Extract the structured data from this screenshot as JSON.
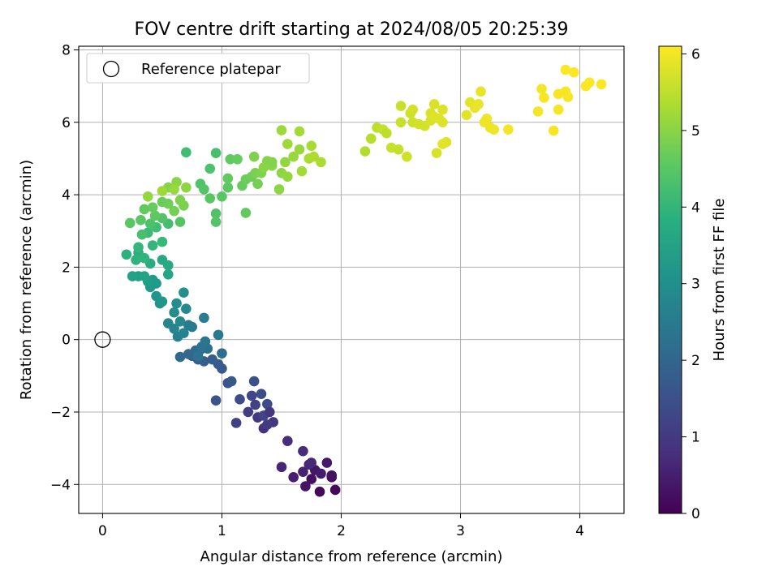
{
  "chart_data": {
    "type": "scatter",
    "title": "FOV centre drift starting at 2024/08/05 20:25:39",
    "xlabel": "Angular distance from reference (arcmin)",
    "ylabel": "Rotation from reference (arcmin)",
    "xlim": [
      -0.2,
      4.37
    ],
    "ylim": [
      -4.8,
      8.1
    ],
    "xticks": [
      0,
      1,
      2,
      3,
      4
    ],
    "yticks": [
      -4,
      -2,
      0,
      2,
      4,
      6,
      8
    ],
    "yticklabels": [
      "−4",
      "−2",
      "0",
      "2",
      "4",
      "6",
      "8"
    ],
    "grid": true,
    "legend": {
      "placement": "top-left",
      "entries": [
        "Reference platepar"
      ]
    },
    "reference_point": {
      "x": 0,
      "y": 0
    },
    "colorbar": {
      "label": "Hours from first FF file",
      "range": [
        0,
        6.1
      ],
      "ticks": [
        0,
        1,
        2,
        3,
        4,
        5,
        6
      ],
      "colormap": "viridis"
    },
    "series": [
      {
        "points": [
          [
            1.82,
            -4.2,
            0.1
          ],
          [
            1.95,
            -4.15,
            0.15
          ],
          [
            1.92,
            -3.8,
            0.2
          ],
          [
            1.75,
            -3.85,
            0.25
          ],
          [
            1.7,
            -4.05,
            0.3
          ],
          [
            1.78,
            -3.6,
            0.35
          ],
          [
            1.88,
            -3.4,
            0.4
          ],
          [
            1.83,
            -3.7,
            0.45
          ],
          [
            1.6,
            -3.8,
            0.5
          ],
          [
            1.68,
            -3.65,
            0.55
          ],
          [
            1.73,
            -3.45,
            0.6
          ],
          [
            1.5,
            -3.52,
            0.65
          ],
          [
            1.75,
            -3.4,
            0.7
          ],
          [
            1.68,
            -3.08,
            0.75
          ],
          [
            1.55,
            -2.8,
            0.8
          ],
          [
            1.92,
            -3.75,
            0.3
          ],
          [
            1.35,
            -2.45,
            0.9
          ],
          [
            1.43,
            -2.28,
            0.95
          ],
          [
            1.3,
            -2.15,
            1.0
          ],
          [
            1.38,
            -2.35,
            1.05
          ],
          [
            1.22,
            -2.0,
            1.1
          ],
          [
            1.12,
            -2.3,
            1.15
          ],
          [
            1.28,
            -1.8,
            1.2
          ],
          [
            1.35,
            -2.1,
            1.25
          ],
          [
            1.25,
            -1.55,
            1.3
          ],
          [
            1.15,
            -1.65,
            1.35
          ],
          [
            1.38,
            -1.78,
            1.4
          ],
          [
            1.33,
            -1.5,
            1.45
          ],
          [
            1.27,
            -1.15,
            1.5
          ],
          [
            1.4,
            -2.0,
            1.0
          ],
          [
            0.95,
            -1.68,
            1.55
          ],
          [
            1.05,
            -1.2,
            1.6
          ],
          [
            1.08,
            -1.15,
            1.65
          ],
          [
            1.0,
            -0.8,
            1.7
          ],
          [
            0.97,
            -0.68,
            1.75
          ],
          [
            0.92,
            -0.55,
            1.8
          ],
          [
            0.85,
            -0.6,
            1.85
          ],
          [
            0.8,
            -0.55,
            1.9
          ],
          [
            0.75,
            -0.45,
            1.95
          ],
          [
            0.72,
            -0.4,
            2.0
          ],
          [
            0.65,
            -0.48,
            2.05
          ],
          [
            0.78,
            -0.3,
            2.1
          ],
          [
            0.82,
            -0.28,
            2.15
          ],
          [
            1.0,
            -0.38,
            2.2
          ],
          [
            0.88,
            -0.25,
            2.25
          ],
          [
            0.8,
            -0.45,
            2.3
          ],
          [
            0.83,
            -0.2,
            2.35
          ],
          [
            0.86,
            -0.05,
            2.4
          ],
          [
            0.97,
            0.13,
            2.45
          ],
          [
            0.75,
            0.35,
            2.5
          ],
          [
            0.72,
            0.4,
            2.55
          ],
          [
            0.85,
            0.6,
            2.6
          ],
          [
            0.63,
            0.08,
            2.65
          ],
          [
            0.68,
            0.18,
            2.7
          ],
          [
            0.6,
            0.3,
            2.75
          ],
          [
            0.55,
            0.45,
            2.8
          ],
          [
            0.65,
            0.5,
            2.85
          ],
          [
            0.7,
            0.85,
            2.9
          ],
          [
            0.6,
            0.75,
            2.95
          ],
          [
            0.62,
            1.0,
            3.0
          ],
          [
            0.68,
            1.3,
            3.05
          ],
          [
            0.48,
            1.0,
            3.1
          ],
          [
            0.45,
            1.2,
            3.15
          ],
          [
            0.5,
            1.05,
            3.2
          ],
          [
            0.4,
            1.45,
            3.25
          ],
          [
            0.45,
            1.55,
            3.3
          ],
          [
            0.42,
            1.65,
            3.35
          ],
          [
            0.38,
            1.6,
            3.4
          ],
          [
            0.3,
            1.75,
            3.45
          ],
          [
            0.25,
            1.75,
            3.5
          ],
          [
            0.35,
            1.75,
            3.55
          ],
          [
            0.55,
            1.8,
            3.6
          ],
          [
            0.5,
            2.2,
            3.65
          ],
          [
            0.55,
            2.05,
            3.7
          ],
          [
            0.4,
            2.1,
            3.75
          ],
          [
            0.3,
            2.4,
            3.8
          ],
          [
            0.2,
            2.35,
            3.85
          ],
          [
            0.28,
            2.2,
            3.9
          ],
          [
            0.35,
            2.25,
            3.95
          ],
          [
            0.3,
            2.55,
            4.0
          ],
          [
            0.42,
            2.6,
            4.05
          ],
          [
            0.5,
            2.7,
            4.1
          ],
          [
            0.38,
            2.95,
            4.15
          ],
          [
            0.45,
            3.1,
            4.2
          ],
          [
            0.55,
            3.2,
            4.25
          ],
          [
            0.33,
            2.9,
            4.3
          ],
          [
            0.4,
            3.2,
            4.35
          ],
          [
            0.5,
            3.35,
            4.4
          ],
          [
            0.65,
            3.25,
            4.45
          ],
          [
            0.23,
            3.22,
            4.5
          ],
          [
            0.32,
            3.3,
            4.5
          ],
          [
            0.44,
            3.42,
            4.55
          ],
          [
            0.35,
            3.6,
            4.6
          ],
          [
            0.42,
            3.65,
            4.65
          ],
          [
            0.5,
            3.8,
            4.7
          ],
          [
            0.55,
            3.75,
            4.75
          ],
          [
            0.6,
            3.55,
            4.8
          ],
          [
            0.68,
            3.7,
            4.85
          ],
          [
            0.65,
            3.85,
            4.9
          ],
          [
            0.55,
            4.2,
            4.95
          ],
          [
            0.62,
            4.35,
            5.0
          ],
          [
            0.7,
            4.2,
            5.05
          ],
          [
            0.38,
            3.95,
            5.1
          ],
          [
            0.6,
            4.15,
            5.15
          ],
          [
            0.5,
            4.1,
            5.2
          ],
          [
            0.7,
            5.17,
            4.2
          ],
          [
            0.95,
            5.15,
            4.3
          ],
          [
            0.9,
            4.72,
            4.35
          ],
          [
            0.82,
            4.3,
            4.4
          ],
          [
            0.85,
            4.15,
            4.45
          ],
          [
            0.9,
            3.9,
            4.5
          ],
          [
            0.95,
            3.48,
            4.4
          ],
          [
            0.95,
            3.25,
            4.45
          ],
          [
            1.0,
            3.95,
            4.5
          ],
          [
            1.05,
            4.2,
            4.55
          ],
          [
            1.05,
            4.45,
            4.6
          ],
          [
            1.2,
            3.5,
            4.6
          ],
          [
            1.07,
            4.98,
            4.6
          ],
          [
            1.13,
            4.98,
            4.65
          ],
          [
            1.17,
            4.25,
            4.65
          ],
          [
            1.2,
            4.42,
            4.7
          ],
          [
            1.25,
            4.5,
            4.75
          ],
          [
            1.3,
            4.3,
            4.8
          ],
          [
            1.28,
            4.6,
            4.85
          ],
          [
            1.33,
            4.6,
            4.9
          ],
          [
            1.27,
            5.05,
            4.9
          ],
          [
            1.38,
            4.93,
            4.95
          ],
          [
            1.42,
            4.8,
            5.0
          ],
          [
            1.42,
            4.9,
            4.95
          ],
          [
            1.35,
            4.75,
            5.0
          ],
          [
            1.48,
            4.15,
            5.05
          ],
          [
            1.5,
            4.6,
            5.05
          ],
          [
            1.55,
            4.5,
            5.1
          ],
          [
            1.53,
            4.9,
            5.1
          ],
          [
            1.6,
            5.05,
            5.15
          ],
          [
            1.65,
            5.25,
            5.15
          ],
          [
            1.55,
            5.4,
            5.2
          ],
          [
            1.5,
            5.78,
            5.2
          ],
          [
            1.65,
            5.75,
            5.25
          ],
          [
            1.67,
            4.65,
            5.25
          ],
          [
            1.73,
            5.0,
            5.3
          ],
          [
            1.75,
            5.35,
            5.3
          ],
          [
            1.77,
            5.05,
            5.35
          ],
          [
            1.83,
            4.9,
            5.35
          ],
          [
            2.2,
            5.2,
            5.4
          ],
          [
            2.25,
            5.55,
            5.45
          ],
          [
            2.3,
            5.85,
            5.5
          ],
          [
            2.35,
            5.8,
            5.55
          ],
          [
            2.38,
            5.7,
            5.5
          ],
          [
            2.42,
            5.3,
            5.6
          ],
          [
            2.48,
            5.25,
            5.55
          ],
          [
            2.5,
            6.0,
            5.6
          ],
          [
            2.5,
            6.45,
            5.6
          ],
          [
            2.55,
            5.05,
            5.65
          ],
          [
            2.58,
            6.25,
            5.65
          ],
          [
            2.6,
            6.0,
            5.65
          ],
          [
            2.6,
            6.35,
            5.7
          ],
          [
            2.65,
            5.95,
            5.7
          ],
          [
            2.7,
            5.9,
            5.7
          ],
          [
            2.75,
            6.05,
            5.75
          ],
          [
            2.75,
            6.25,
            5.75
          ],
          [
            2.78,
            6.5,
            5.75
          ],
          [
            2.8,
            5.15,
            5.75
          ],
          [
            2.82,
            6.1,
            5.8
          ],
          [
            2.85,
            6.35,
            5.8
          ],
          [
            2.85,
            6.0,
            5.8
          ],
          [
            2.88,
            5.45,
            5.8
          ],
          [
            2.85,
            5.4,
            5.85
          ],
          [
            2.78,
            6.15,
            5.8
          ],
          [
            3.05,
            6.2,
            5.85
          ],
          [
            3.08,
            6.55,
            5.85
          ],
          [
            3.12,
            6.4,
            5.9
          ],
          [
            3.15,
            6.5,
            5.9
          ],
          [
            3.17,
            6.85,
            5.9
          ],
          [
            3.2,
            6.0,
            5.95
          ],
          [
            3.22,
            6.1,
            5.95
          ],
          [
            3.25,
            5.85,
            5.95
          ],
          [
            3.28,
            5.8,
            5.95
          ],
          [
            3.4,
            5.8,
            6.0
          ],
          [
            3.65,
            6.3,
            6.0
          ],
          [
            3.68,
            6.92,
            6.0
          ],
          [
            3.7,
            6.68,
            6.05
          ],
          [
            3.78,
            5.77,
            6.05
          ],
          [
            3.82,
            6.35,
            6.05
          ],
          [
            3.82,
            6.78,
            6.05
          ],
          [
            3.88,
            6.85,
            6.05
          ],
          [
            3.9,
            6.7,
            6.05
          ],
          [
            3.88,
            7.45,
            6.07
          ],
          [
            3.95,
            7.38,
            6.07
          ],
          [
            4.05,
            7.0,
            6.08
          ],
          [
            4.08,
            7.1,
            6.08
          ],
          [
            4.18,
            7.05,
            6.09
          ]
        ]
      }
    ]
  }
}
